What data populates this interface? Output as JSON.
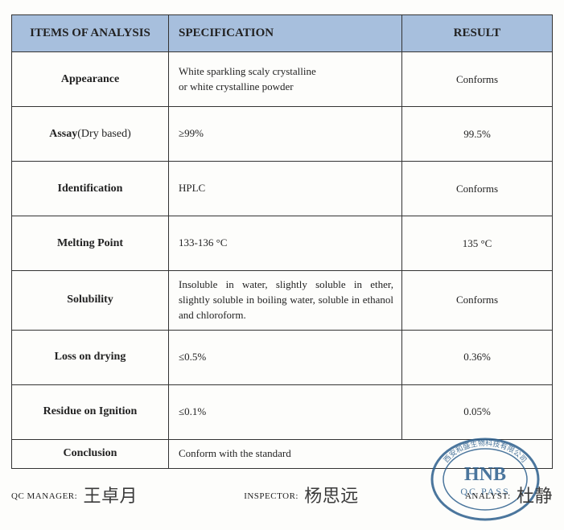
{
  "headers": {
    "items": "ITEMS OF ANALYSIS",
    "spec": "SPECIFICATION",
    "result": "RESULT"
  },
  "rows": [
    {
      "item_bold": "Appearance",
      "item_plain": "",
      "spec": "White sparkling scaly crystalline\nor white crystalline powder",
      "result": "Conforms",
      "justify": false
    },
    {
      "item_bold": "Assay",
      "item_plain": "(Dry based)",
      "spec": "≥99%",
      "result": "99.5%",
      "justify": false
    },
    {
      "item_bold": "Identification",
      "item_plain": "",
      "spec": "HPLC",
      "result": "Conforms",
      "justify": false
    },
    {
      "item_bold": "Melting Point",
      "item_plain": "",
      "spec": "133-136 °C",
      "result": "135 °C",
      "justify": false
    },
    {
      "item_bold": "Solubility",
      "item_plain": "",
      "spec": "Insoluble in water, slightly soluble in ether, slightly soluble in boiling water, soluble in ethanol and chloroform.",
      "result": "Conforms",
      "justify": true
    },
    {
      "item_bold": "Loss on drying",
      "item_plain": "",
      "spec": "≤0.5%",
      "result": "0.36%",
      "justify": false
    },
    {
      "item_bold": "Residue on Ignition",
      "item_plain": "",
      "spec": "≤0.1%",
      "result": "0.05%",
      "justify": false
    }
  ],
  "conclusion": {
    "label": "Conclusion",
    "text": "Conform with the standard"
  },
  "signatures": {
    "qc_label": "QC MANAGER:",
    "qc_sig": "王卓月",
    "insp_label": "INSPECTOR:",
    "insp_sig": "杨思远",
    "analyst_label": "ANALYST:",
    "analyst_sig": "杜静"
  },
  "stamp": {
    "main": "HNB",
    "sub": "QC PASS",
    "ring": "西安和盛生物科技有限公司",
    "color": "#2c5f8d"
  },
  "colors": {
    "header_bg": "#a7bfdd",
    "border": "#333333"
  }
}
